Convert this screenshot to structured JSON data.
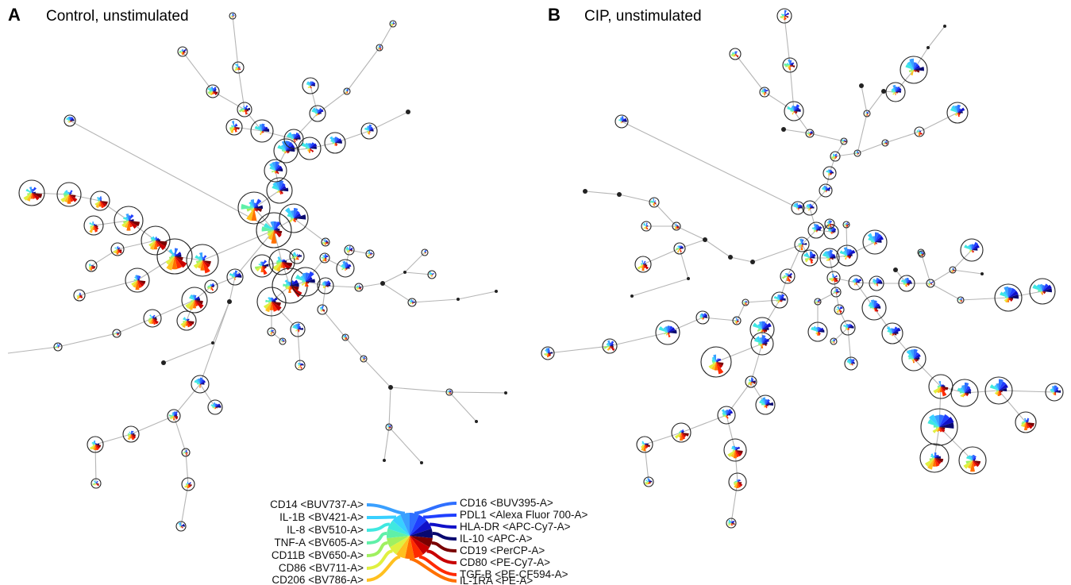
{
  "panels": [
    {
      "letter": "A",
      "title": "Control, unstimulated"
    },
    {
      "letter": "B",
      "title": "CIP, unstimulated"
    }
  ],
  "legend": {
    "left": [
      {
        "label": "CD14 <BUV737-A>",
        "color": "#3aa0ff"
      },
      {
        "label": "IL-1B <BV421-A>",
        "color": "#38d0ff"
      },
      {
        "label": "IL-8 <BV510-A>",
        "color": "#3fe8e0"
      },
      {
        "label": "TNF-A <BV605-A>",
        "color": "#5ff0a8"
      },
      {
        "label": "CD11B <BV650-A>",
        "color": "#9ff060"
      },
      {
        "label": "CD86 <BV711-A>",
        "color": "#e0f040"
      },
      {
        "label": "CD206 <BV786-A>",
        "color": "#ffc020"
      }
    ],
    "right": [
      {
        "label": "CD16 <BUV395-A>",
        "color": "#2f6fff"
      },
      {
        "label": "PDL1 <Alexa Fluor 700-A>",
        "color": "#1f3fff"
      },
      {
        "label": "HLA-DR <APC-Cy7-A>",
        "color": "#1010c8"
      },
      {
        "label": "IL-10 <APC-A>",
        "color": "#080870"
      },
      {
        "label": "CD19 <PerCP-A>",
        "color": "#7a0000"
      },
      {
        "label": "CD80 <PE-Cy7-A>",
        "color": "#c80000"
      },
      {
        "label": "TGF-B <PE-CF594-A>",
        "color": "#ff2a00"
      },
      {
        "label": "IL-1RA <PE-A>",
        "color": "#ff7000"
      }
    ]
  },
  "colors": {
    "edge": "#b5b5b5",
    "ring": "#222222"
  }
}
